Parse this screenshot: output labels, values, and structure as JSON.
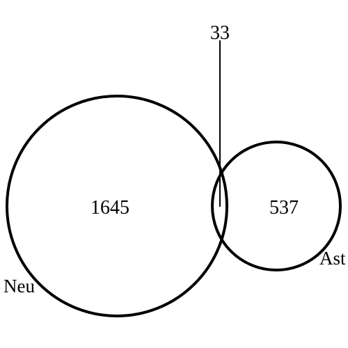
{
  "diagram": {
    "type": "venn",
    "stroke_color": "#000000",
    "sets": [
      {
        "id": "neu",
        "label": "Neu"
      },
      {
        "id": "ast",
        "label": "Ast"
      }
    ],
    "regions": {
      "neu_only": 1645,
      "intersection": 33,
      "ast_only": 537
    }
  }
}
